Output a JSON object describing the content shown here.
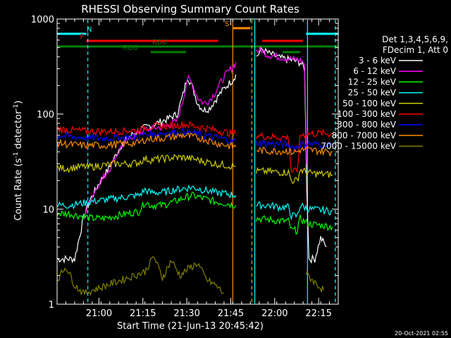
{
  "chart_data": {
    "type": "line",
    "title": "RHESSI Observing Summary Count Rates",
    "xlabel": "Start Time (21-Jun-13 20:45:42)",
    "ylabel_parts": [
      "Count Rate (s",
      "-1",
      " detector",
      "-1",
      ")"
    ],
    "x_units": "minutes since 20:45:42",
    "xlim": [
      0,
      96
    ],
    "ylim": [
      1,
      1000
    ],
    "yscale": "log",
    "x_ticks": [
      {
        "label": "21:00",
        "value": 14.3
      },
      {
        "label": "21:15",
        "value": 29.3
      },
      {
        "label": "21:30",
        "value": 44.3
      },
      {
        "label": "21:45",
        "value": 59.3
      },
      {
        "label": "22:00",
        "value": 74.3
      },
      {
        "label": "22:15",
        "value": 89.3
      }
    ],
    "y_ticks": [
      {
        "label": "1",
        "value": 1
      },
      {
        "label": "10",
        "value": 10
      },
      {
        "label": "100",
        "value": 100
      },
      {
        "label": "1000",
        "value": 1000
      }
    ],
    "timestamp": "20-Oct-2021 02:55",
    "legend_header": [
      "Det 1,3,4,5,6,9,",
      "FDecim 1, Att 0"
    ],
    "series": [
      {
        "name": "3 - 6 keV",
        "color": "#ffffff",
        "points": [
          [
            0,
            3
          ],
          [
            6,
            3
          ],
          [
            9,
            8
          ],
          [
            11,
            12
          ],
          [
            14,
            18
          ],
          [
            18,
            28
          ],
          [
            22,
            48
          ],
          [
            26,
            62
          ],
          [
            30,
            72
          ],
          [
            34,
            80
          ],
          [
            38,
            90
          ],
          [
            41,
            100
          ],
          [
            43,
            160
          ],
          [
            44.5,
            250
          ],
          [
            46,
            200
          ],
          [
            48,
            130
          ],
          [
            50,
            110
          ],
          [
            52,
            115
          ],
          [
            54,
            140
          ],
          [
            56,
            170
          ],
          [
            58,
            200
          ],
          [
            60,
            230
          ],
          [
            61,
            260
          ]
        ],
        "points2": [
          [
            68,
            400
          ],
          [
            70,
            480
          ],
          [
            72,
            440
          ],
          [
            76,
            390
          ],
          [
            80,
            370
          ],
          [
            83,
            350
          ],
          [
            84.5,
            300
          ],
          [
            85.2,
            20
          ],
          [
            86,
            3
          ],
          [
            88,
            3
          ],
          [
            90,
            5
          ],
          [
            92,
            4
          ]
        ]
      },
      {
        "name": "6 - 12 keV",
        "color": "#ff00ff",
        "points": [
          [
            9,
            8
          ],
          [
            11,
            12
          ],
          [
            14,
            18
          ],
          [
            18,
            27
          ],
          [
            22,
            46
          ],
          [
            26,
            60
          ],
          [
            30,
            68
          ],
          [
            34,
            72
          ],
          [
            38,
            76
          ],
          [
            41,
            85
          ],
          [
            43,
            140
          ],
          [
            44.5,
            240
          ],
          [
            46,
            210
          ],
          [
            48,
            150
          ],
          [
            50,
            130
          ],
          [
            52,
            140
          ],
          [
            54,
            170
          ],
          [
            56,
            220
          ],
          [
            58,
            270
          ],
          [
            60,
            310
          ],
          [
            61,
            350
          ]
        ],
        "points2": [
          [
            68,
            460
          ],
          [
            70,
            470
          ],
          [
            72,
            420
          ],
          [
            76,
            400
          ],
          [
            80,
            380
          ],
          [
            83,
            370
          ],
          [
            84.5,
            340
          ],
          [
            85.2,
            30
          ]
        ]
      },
      {
        "name": "12 - 25 keV",
        "color": "#00ff00",
        "points": [
          [
            0,
            9
          ],
          [
            4,
            9
          ],
          [
            8,
            8.5
          ],
          [
            12,
            8
          ],
          [
            16,
            8
          ],
          [
            20,
            8.5
          ],
          [
            24,
            9
          ],
          [
            28,
            9.5
          ],
          [
            30,
            12
          ],
          [
            32,
            11
          ],
          [
            36,
            11
          ],
          [
            40,
            12
          ],
          [
            43,
            13
          ],
          [
            46,
            14
          ],
          [
            50,
            13
          ],
          [
            54,
            12
          ],
          [
            58,
            11.5
          ],
          [
            61,
            11
          ]
        ],
        "points2": [
          [
            68,
            8
          ],
          [
            72,
            7.8
          ],
          [
            76,
            7.5
          ],
          [
            79,
            7.5
          ],
          [
            80,
            6
          ],
          [
            82,
            6
          ],
          [
            83,
            8
          ],
          [
            86,
            7
          ],
          [
            90,
            6.8
          ],
          [
            94,
            6.5
          ]
        ]
      },
      {
        "name": "25 - 50 keV",
        "color": "#00ffff",
        "points": [
          [
            0,
            11
          ],
          [
            4,
            11
          ],
          [
            8,
            11.5
          ],
          [
            12,
            12
          ],
          [
            16,
            12.5
          ],
          [
            20,
            13
          ],
          [
            24,
            13.5
          ],
          [
            28,
            14
          ],
          [
            30,
            16
          ],
          [
            32,
            15
          ],
          [
            36,
            15
          ],
          [
            40,
            16
          ],
          [
            43,
            16.5
          ],
          [
            46,
            17
          ],
          [
            50,
            16
          ],
          [
            54,
            15
          ],
          [
            58,
            14.5
          ],
          [
            61,
            14
          ]
        ],
        "points2": [
          [
            68,
            11
          ],
          [
            72,
            11
          ],
          [
            76,
            10.5
          ],
          [
            79,
            10.5
          ],
          [
            80,
            8.5
          ],
          [
            82,
            8.5
          ],
          [
            83,
            11
          ],
          [
            86,
            10
          ],
          [
            90,
            9.8
          ],
          [
            94,
            9.5
          ]
        ]
      },
      {
        "name": "50 - 100 keV",
        "color": "#cccc00",
        "points": [
          [
            0,
            27
          ],
          [
            4,
            27
          ],
          [
            8,
            28
          ],
          [
            12,
            28
          ],
          [
            16,
            29
          ],
          [
            20,
            30
          ],
          [
            24,
            30
          ],
          [
            28,
            31
          ],
          [
            30,
            34
          ],
          [
            32,
            33
          ],
          [
            36,
            34
          ],
          [
            40,
            35
          ],
          [
            43,
            35
          ],
          [
            46,
            34
          ],
          [
            50,
            32
          ],
          [
            54,
            30
          ],
          [
            58,
            29
          ],
          [
            61,
            28
          ]
        ],
        "points2": [
          [
            68,
            25
          ],
          [
            72,
            25
          ],
          [
            76,
            24.5
          ],
          [
            79,
            24.5
          ],
          [
            80,
            20
          ],
          [
            82,
            20
          ],
          [
            83,
            26
          ],
          [
            86,
            24
          ],
          [
            90,
            23.5
          ],
          [
            94,
            23
          ]
        ]
      },
      {
        "name": "100 - 300 keV",
        "color": "#ff0000",
        "points": [
          [
            0,
            70
          ],
          [
            4,
            68
          ],
          [
            8,
            67
          ],
          [
            12,
            66
          ],
          [
            16,
            66
          ],
          [
            20,
            66
          ],
          [
            24,
            67
          ],
          [
            28,
            68
          ],
          [
            30,
            72
          ],
          [
            32,
            74
          ],
          [
            36,
            75
          ],
          [
            40,
            76
          ],
          [
            43,
            78
          ],
          [
            46,
            76
          ],
          [
            50,
            72
          ],
          [
            54,
            68
          ],
          [
            58,
            64
          ],
          [
            61,
            62
          ]
        ],
        "points2": [
          [
            68,
            60
          ],
          [
            72,
            58
          ],
          [
            76,
            57
          ],
          [
            79,
            57
          ],
          [
            80,
            25
          ],
          [
            82,
            25
          ],
          [
            83,
            60
          ],
          [
            86,
            62
          ],
          [
            90,
            63
          ],
          [
            94,
            62
          ]
        ]
      },
      {
        "name": "300 - 800 keV",
        "color": "#0000ff",
        "points": [
          [
            0,
            60
          ],
          [
            4,
            58
          ],
          [
            8,
            57
          ],
          [
            12,
            56
          ],
          [
            16,
            56
          ],
          [
            20,
            56
          ],
          [
            24,
            57
          ],
          [
            28,
            58
          ],
          [
            30,
            61
          ],
          [
            32,
            62
          ],
          [
            36,
            63
          ],
          [
            40,
            64
          ],
          [
            43,
            65
          ],
          [
            46,
            63
          ],
          [
            50,
            60
          ],
          [
            54,
            57
          ],
          [
            58,
            54
          ],
          [
            61,
            52
          ]
        ],
        "points2": [
          [
            68,
            50
          ],
          [
            72,
            49
          ],
          [
            76,
            48
          ],
          [
            79,
            48
          ],
          [
            80,
            45
          ],
          [
            82,
            45
          ],
          [
            83,
            48
          ],
          [
            86,
            49
          ],
          [
            90,
            48
          ],
          [
            94,
            47
          ]
        ]
      },
      {
        "name": "800 - 7000 keV",
        "color": "#ff8c00",
        "points": [
          [
            0,
            50
          ],
          [
            4,
            48
          ],
          [
            8,
            47
          ],
          [
            12,
            47
          ],
          [
            16,
            47
          ],
          [
            20,
            48
          ],
          [
            24,
            49
          ],
          [
            28,
            50
          ],
          [
            30,
            54
          ],
          [
            32,
            55
          ],
          [
            36,
            56
          ],
          [
            40,
            58
          ],
          [
            43,
            60
          ],
          [
            46,
            58
          ],
          [
            50,
            55
          ],
          [
            54,
            50
          ],
          [
            58,
            47
          ],
          [
            61,
            45
          ]
        ],
        "points2": [
          [
            68,
            42
          ],
          [
            72,
            41
          ],
          [
            76,
            41
          ],
          [
            79,
            41
          ],
          [
            80,
            40
          ],
          [
            82,
            40
          ],
          [
            83,
            42
          ],
          [
            86,
            42
          ],
          [
            90,
            41
          ],
          [
            94,
            40
          ]
        ]
      },
      {
        "name": "7000 - 15000 keV",
        "color": "#808000",
        "points": [
          [
            0,
            1.8
          ],
          [
            3,
            2.5
          ],
          [
            6,
            1.6
          ],
          [
            9,
            1.3
          ],
          [
            30,
            2.2
          ],
          [
            33,
            3.2
          ],
          [
            36,
            1.9
          ],
          [
            39,
            2.9
          ],
          [
            42,
            2.0
          ],
          [
            45,
            2.4
          ],
          [
            48,
            2.7
          ],
          [
            51,
            1.8
          ],
          [
            54,
            1.6
          ],
          [
            57,
            1.3
          ]
        ],
        "points2": [
          [
            85,
            2.1
          ],
          [
            88,
            1.7
          ],
          [
            91,
            1.4
          ]
        ]
      }
    ],
    "flags": [
      {
        "name": "N",
        "color": "#00ffff",
        "level": 1,
        "segments": [
          [
            0,
            10
          ],
          [
            85,
            96
          ]
        ],
        "label_at": 11
      },
      {
        "name": "F",
        "color": "#ff0000",
        "level": 2,
        "segments": [
          [
            10,
            55
          ],
          [
            70,
            84
          ]
        ],
        "label_at": 8.5
      },
      {
        "name": "S",
        "color": "#ff8c00",
        "level": 0,
        "segments": [
          [
            60,
            66
          ]
        ],
        "label_at": 58
      },
      {
        "name": "RD0",
        "color": "#008000",
        "level": 3,
        "segments": [
          [
            0,
            96
          ]
        ],
        "label_at": 35
      },
      {
        "name": "RD6",
        "color": "#008000",
        "level": 4,
        "segments": [
          [
            32,
            44
          ],
          [
            77,
            83
          ]
        ],
        "label_at": 25
      }
    ],
    "vlines": [
      {
        "x": 10.5,
        "color": "#00ffff",
        "style": "dashed"
      },
      {
        "x": 60,
        "color": "#ff8c00",
        "style": "solid"
      },
      {
        "x": 66.5,
        "color": "#ff8c00",
        "style": "dashed"
      },
      {
        "x": 67.5,
        "color": "#00ffff",
        "style": "solid"
      },
      {
        "x": 85.5,
        "color": "#00ffff",
        "style": "solid"
      },
      {
        "x": 95,
        "color": "#00ffff",
        "style": "dashed"
      }
    ]
  }
}
